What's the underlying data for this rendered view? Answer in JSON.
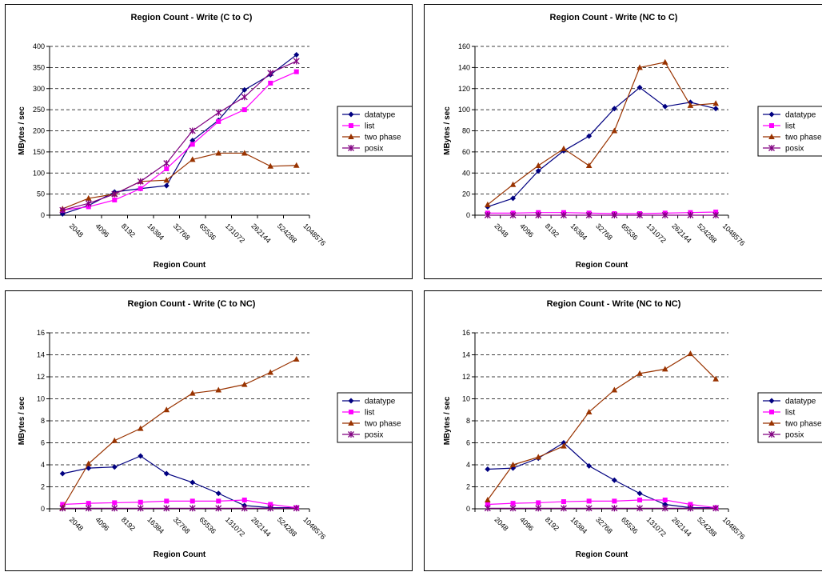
{
  "colors": {
    "datatype": "#000080",
    "list": "#ff00ff",
    "two phase": "#993300",
    "posix": "#800080"
  },
  "chart_data": [
    {
      "type": "line",
      "title": "Region Count -  Write (C to C)",
      "xlabel": "Region Count",
      "ylabel": "MBytes / sec",
      "ylim": [
        0,
        400
      ],
      "yticks": [
        0,
        50,
        100,
        150,
        200,
        250,
        300,
        350,
        400
      ],
      "categories": [
        "2048",
        "4096",
        "8192",
        "16384",
        "32768",
        "65536",
        "131072",
        "262144",
        "524288",
        "1048576"
      ],
      "legend": "right",
      "grid": true,
      "series": [
        {
          "name": "datatype",
          "marker": "diamond",
          "values": [
            3,
            23,
            55,
            63,
            70,
            177,
            225,
            297,
            333,
            380
          ]
        },
        {
          "name": "list",
          "marker": "square",
          "values": [
            12,
            20,
            36,
            63,
            110,
            168,
            222,
            250,
            313,
            340
          ]
        },
        {
          "name": "two phase",
          "marker": "triangle",
          "values": [
            15,
            40,
            50,
            80,
            83,
            132,
            147,
            147,
            116,
            118
          ]
        },
        {
          "name": "posix",
          "marker": "star",
          "values": [
            12,
            28,
            50,
            80,
            123,
            200,
            243,
            280,
            337,
            365
          ]
        }
      ]
    },
    {
      "type": "line",
      "title": "Region Count -  Write (NC to C)",
      "xlabel": "Region Count",
      "ylabel": "MBytes / sec",
      "ylim": [
        0,
        160
      ],
      "yticks": [
        0,
        20,
        40,
        60,
        80,
        100,
        120,
        140,
        160
      ],
      "categories": [
        "2048",
        "4096",
        "8192",
        "16384",
        "32768",
        "65536",
        "131072",
        "262144",
        "524288",
        "1048576"
      ],
      "legend": "right",
      "grid": true,
      "series": [
        {
          "name": "datatype",
          "marker": "diamond",
          "values": [
            8,
            16,
            42,
            61,
            75,
            101,
            121,
            103,
            107,
            101
          ]
        },
        {
          "name": "list",
          "marker": "square",
          "values": [
            2,
            2,
            2.5,
            2.5,
            2,
            1.5,
            1.5,
            2,
            2.5,
            3
          ]
        },
        {
          "name": "two phase",
          "marker": "triangle",
          "values": [
            10,
            29,
            47,
            63,
            47,
            80,
            140,
            145,
            104,
            106
          ]
        },
        {
          "name": "posix",
          "marker": "star",
          "values": [
            0,
            0,
            0,
            0,
            0,
            0,
            0,
            0,
            0,
            0
          ]
        }
      ]
    },
    {
      "type": "line",
      "title": "Region Count -  Write (C to NC)",
      "xlabel": "Region Count",
      "ylabel": "MBytes / sec",
      "ylim": [
        0,
        16
      ],
      "yticks": [
        0,
        2,
        4,
        6,
        8,
        10,
        12,
        14,
        16
      ],
      "categories": [
        "2048",
        "4096",
        "8192",
        "16384",
        "32768",
        "65536",
        "131072",
        "262144",
        "524288",
        "1048576"
      ],
      "legend": "right",
      "grid": true,
      "series": [
        {
          "name": "datatype",
          "marker": "diamond",
          "values": [
            3.2,
            3.7,
            3.8,
            4.8,
            3.2,
            2.4,
            1.4,
            0.3,
            0.1,
            0.1
          ]
        },
        {
          "name": "list",
          "marker": "square",
          "values": [
            0.4,
            0.5,
            0.55,
            0.6,
            0.7,
            0.7,
            0.7,
            0.8,
            0.4,
            0.1
          ]
        },
        {
          "name": "two phase",
          "marker": "triangle",
          "values": [
            0.1,
            4.1,
            6.2,
            7.3,
            9.0,
            10.5,
            10.8,
            11.3,
            12.4,
            13.6
          ]
        },
        {
          "name": "posix",
          "marker": "star",
          "values": [
            0.05,
            0.05,
            0.05,
            0.05,
            0.05,
            0.05,
            0.05,
            0.05,
            0.05,
            0.05
          ]
        }
      ]
    },
    {
      "type": "line",
      "title": "Region Count -  Write (NC to NC)",
      "xlabel": "Region Count",
      "ylabel": "MBytes / sec",
      "ylim": [
        0,
        16
      ],
      "yticks": [
        0,
        2,
        4,
        6,
        8,
        10,
        12,
        14,
        16
      ],
      "categories": [
        "2048",
        "4096",
        "8192",
        "16384",
        "32768",
        "65536",
        "131072",
        "262144",
        "524288",
        "1048576"
      ],
      "legend": "right",
      "grid": true,
      "series": [
        {
          "name": "datatype",
          "marker": "diamond",
          "values": [
            3.6,
            3.7,
            4.6,
            6.0,
            3.9,
            2.6,
            1.4,
            0.4,
            0.1,
            0.1
          ]
        },
        {
          "name": "list",
          "marker": "square",
          "values": [
            0.4,
            0.5,
            0.55,
            0.65,
            0.7,
            0.7,
            0.8,
            0.8,
            0.4,
            0.1
          ]
        },
        {
          "name": "two phase",
          "marker": "triangle",
          "values": [
            0.8,
            4.0,
            4.7,
            5.7,
            8.8,
            10.8,
            12.3,
            12.7,
            14.1,
            11.8
          ]
        },
        {
          "name": "posix",
          "marker": "star",
          "values": [
            0.05,
            0.05,
            0.05,
            0.05,
            0.05,
            0.05,
            0.05,
            0.05,
            0.05,
            0.05
          ]
        }
      ]
    }
  ]
}
